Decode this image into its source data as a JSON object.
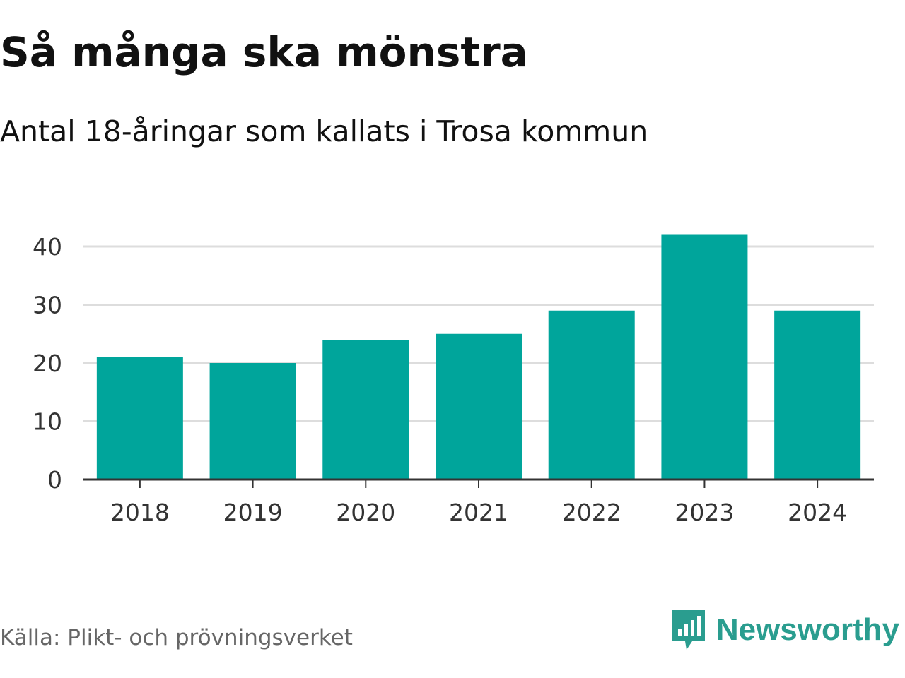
{
  "title": "Så många ska mönstra",
  "subtitle": "Antal 18-åringar som kallats i Trosa kommun",
  "source": "Källa: Plikt- och prövningsverket",
  "brand": {
    "name": "Newsworthy",
    "color": "#2a9d8f",
    "icon": "bar-chart-speech-bubble-icon"
  },
  "chart_data": {
    "type": "bar",
    "categories": [
      "2018",
      "2019",
      "2020",
      "2021",
      "2022",
      "2023",
      "2024"
    ],
    "values": [
      21,
      20,
      24,
      25,
      29,
      42,
      29
    ],
    "title": "Så många ska mönstra",
    "subtitle": "Antal 18-åringar som kallats i Trosa kommun",
    "xlabel": "",
    "ylabel": "",
    "ylim": [
      0,
      43
    ],
    "yticks": [
      0,
      10,
      20,
      30,
      40
    ],
    "grid": true,
    "legend": "none",
    "bar_color": "#00a59b"
  }
}
